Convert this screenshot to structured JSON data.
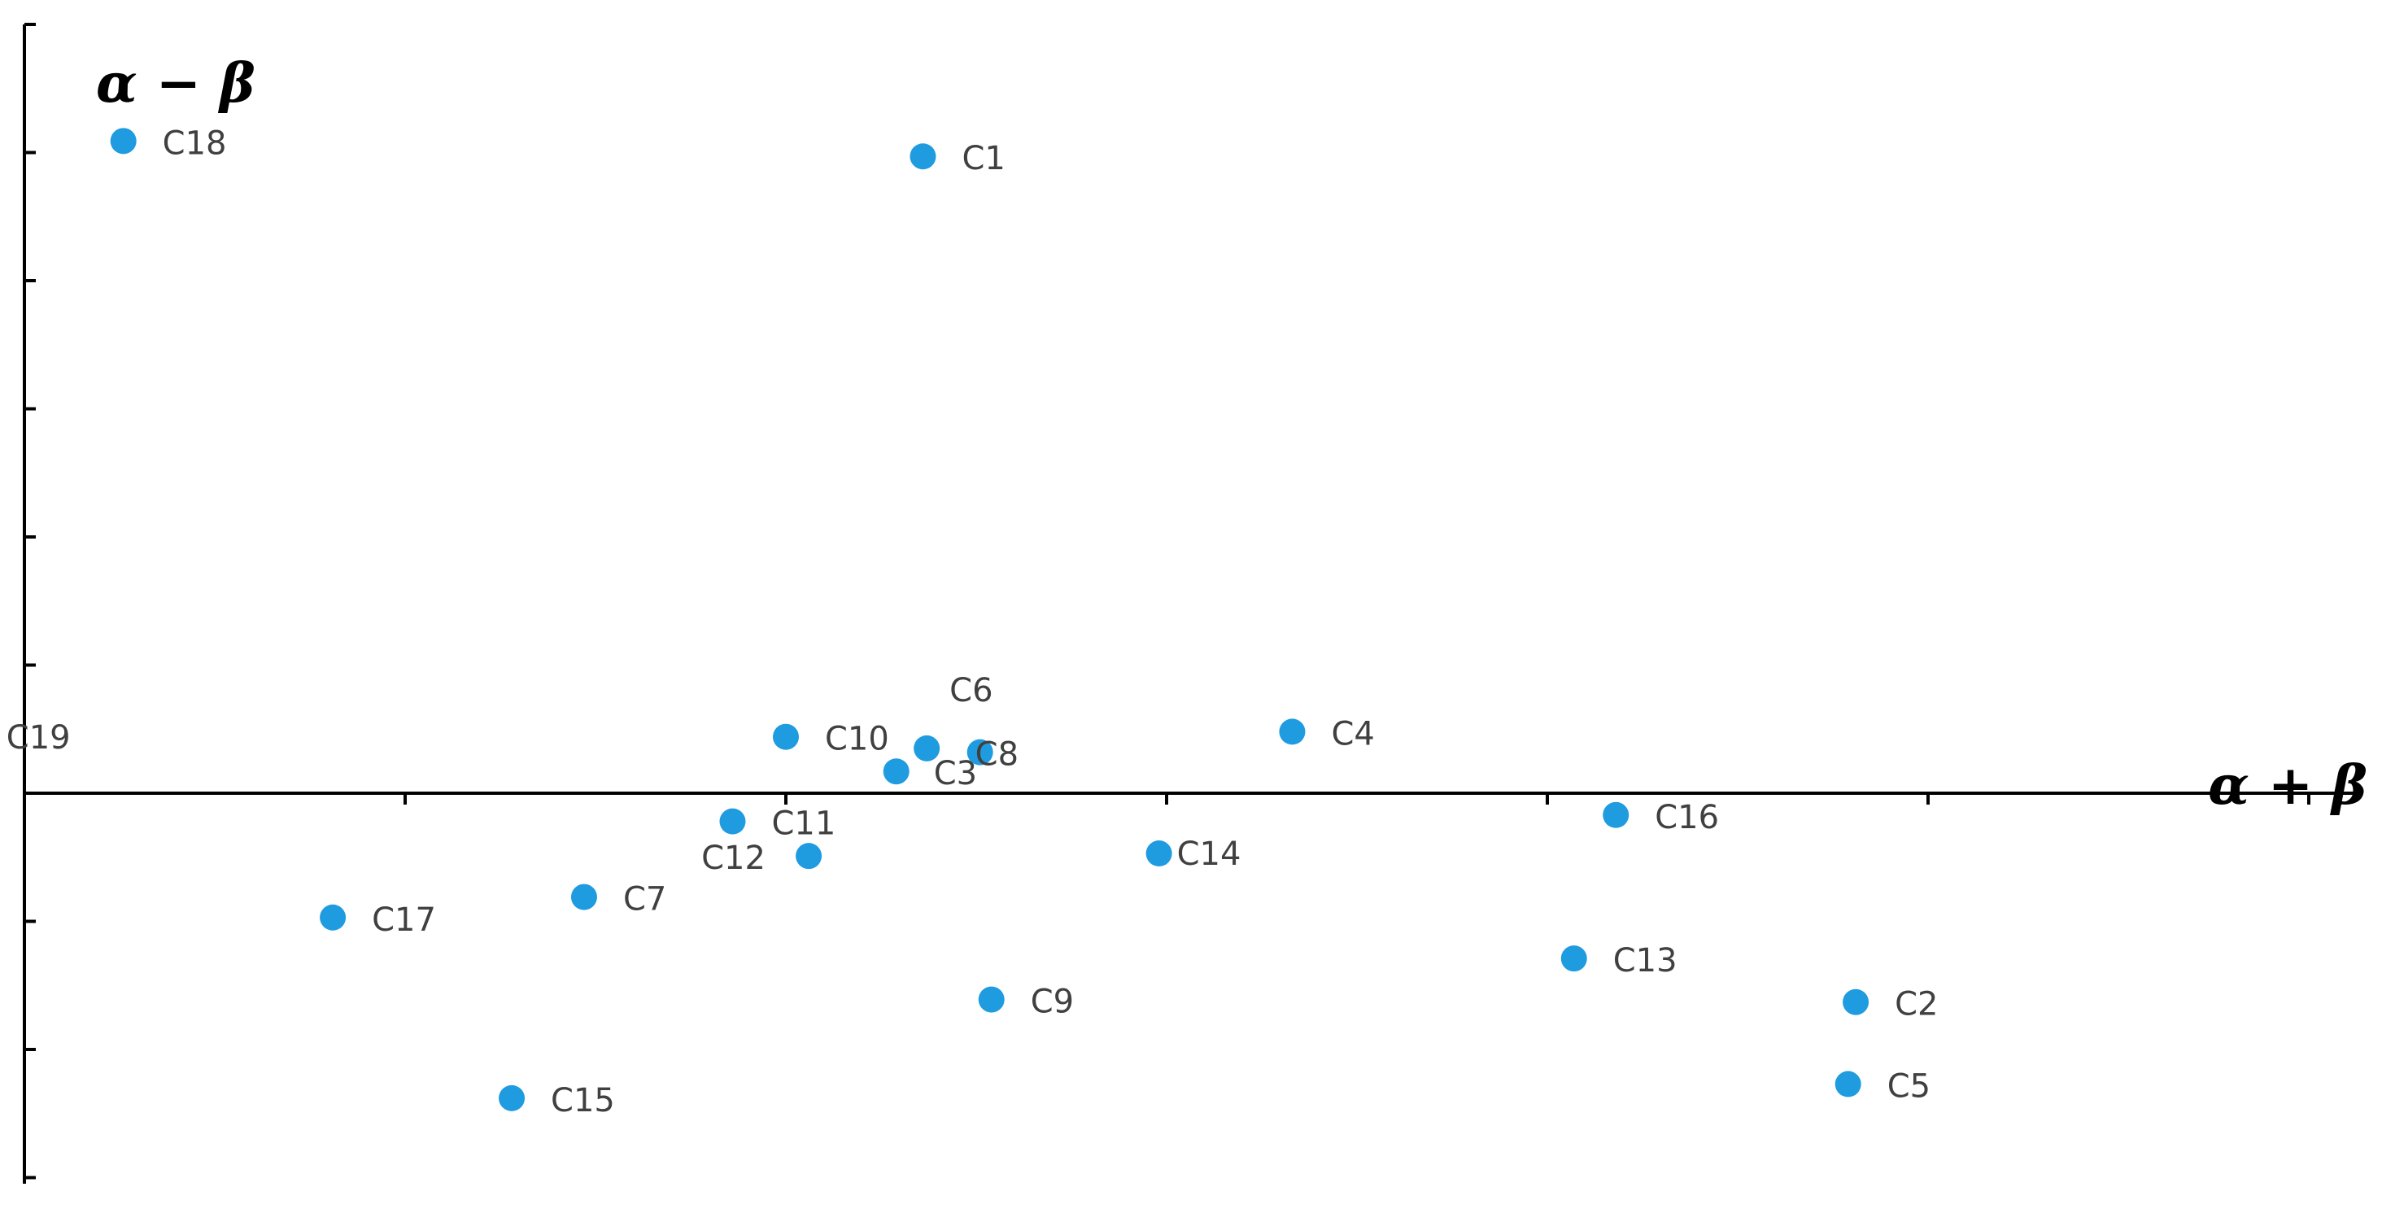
{
  "chart_data": {
    "type": "scatter",
    "xlabel": "α + β",
    "ylabel": "α − β",
    "xlim": [
      -2,
      4
    ],
    "ylim": [
      -3,
      6
    ],
    "grid": false,
    "legend": "none",
    "point_color": "#1f9be0",
    "points": [
      {
        "label": "C1",
        "x": 0.36,
        "y": 4.97
      },
      {
        "label": "C2",
        "x": 2.81,
        "y": -1.63
      },
      {
        "label": "C3",
        "x": 0.29,
        "y": 0.17
      },
      {
        "label": "C4",
        "x": 1.33,
        "y": 0.48
      },
      {
        "label": "C5",
        "x": 2.79,
        "y": -2.27
      },
      {
        "label": "C6",
        "x": 0.37,
        "y": 0.35
      },
      {
        "label": "C7",
        "x": -0.53,
        "y": -0.81
      },
      {
        "label": "C8",
        "x": 0.51,
        "y": 0.32
      },
      {
        "label": "C9",
        "x": 0.54,
        "y": -1.61
      },
      {
        "label": "C10",
        "x": 0.0,
        "y": 0.44
      },
      {
        "label": "C11",
        "x": -0.14,
        "y": -0.22
      },
      {
        "label": "C12",
        "x": 0.06,
        "y": -0.49
      },
      {
        "label": "C13",
        "x": 2.07,
        "y": -1.29
      },
      {
        "label": "C14",
        "x": 0.98,
        "y": -0.47
      },
      {
        "label": "C15",
        "x": -0.72,
        "y": -2.38
      },
      {
        "label": "C16",
        "x": 2.18,
        "y": -0.17
      },
      {
        "label": "C17",
        "x": -1.19,
        "y": -0.97
      },
      {
        "label": "C18",
        "x": -1.74,
        "y": 5.09
      },
      {
        "label": "C19",
        "x": -2.15,
        "y": 0.45
      }
    ]
  }
}
